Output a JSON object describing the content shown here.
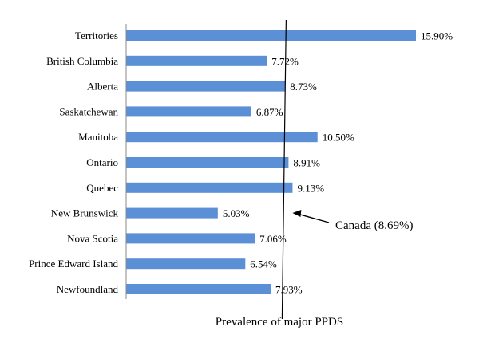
{
  "chart_data": {
    "type": "bar",
    "orientation": "horizontal",
    "categories": [
      "Territories",
      "British Columbia",
      "Alberta",
      "Saskatchewan",
      "Manitoba",
      "Ontario",
      "Quebec",
      "New Brunswick",
      "Nova Scotia",
      "Prince Edward Island",
      "Newfoundland"
    ],
    "values": [
      15.9,
      7.72,
      8.73,
      6.87,
      10.5,
      8.91,
      9.13,
      5.03,
      7.06,
      6.54,
      7.93
    ],
    "data_labels": [
      "15.90%",
      "7.72%",
      "8.73%",
      "6.87%",
      "10.50%",
      "8.91%",
      "9.13%",
      "5.03%",
      "7.06%",
      "6.54%",
      "7.93%"
    ],
    "xlabel": "Prevalence of major PPDS",
    "ylabel": "",
    "xlim": [
      0,
      17
    ],
    "grid": false,
    "legend": "none",
    "bar_color": "#5b8fd6",
    "reference_line": {
      "value": 8.69,
      "label": "Canada (8.69%)",
      "color": "#000000"
    }
  }
}
